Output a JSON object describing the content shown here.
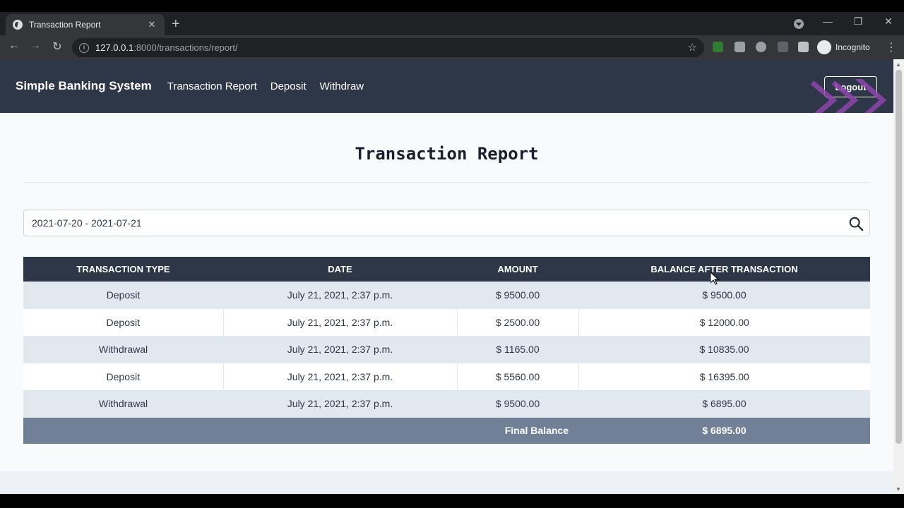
{
  "browser": {
    "tab_title": "Transaction Report",
    "url_host": "127.0.0.1",
    "url_path": ":8000/transactions/report/",
    "profile_label": "Incognito"
  },
  "nav": {
    "brand": "Simple Banking System",
    "links": [
      "Transaction Report",
      "Deposit",
      "Withdraw"
    ],
    "logout_label": "Logout"
  },
  "page": {
    "title": "Transaction Report",
    "date_range": "2021-07-20 - 2021-07-21"
  },
  "table": {
    "headers": [
      "TRANSACTION TYPE",
      "DATE",
      "AMOUNT",
      "BALANCE AFTER TRANSACTION"
    ],
    "rows": [
      [
        "Deposit",
        "July 21, 2021, 2:37 p.m.",
        "$ 9500.00",
        "$ 9500.00"
      ],
      [
        "Deposit",
        "July 21, 2021, 2:37 p.m.",
        "$ 2500.00",
        "$ 12000.00"
      ],
      [
        "Withdrawal",
        "July 21, 2021, 2:37 p.m.",
        "$ 1165.00",
        "$ 10835.00"
      ],
      [
        "Deposit",
        "July 21, 2021, 2:37 p.m.",
        "$ 5560.00",
        "$ 16395.00"
      ],
      [
        "Withdrawal",
        "July 21, 2021, 2:37 p.m.",
        "$ 9500.00",
        "$ 6895.00"
      ]
    ],
    "final_label": "Final Balance",
    "final_value": "$ 6895.00"
  },
  "colors": {
    "navbar": "#2d3748",
    "total_row": "#718096",
    "stripe": "#e2e8f0",
    "logo_accent": "#8e44ad"
  }
}
